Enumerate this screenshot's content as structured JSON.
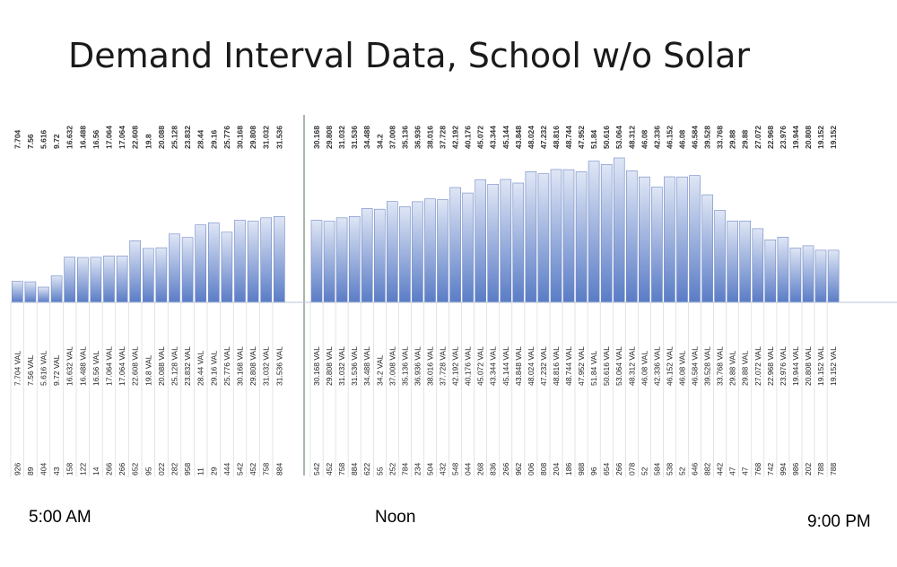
{
  "slide": {
    "title": "Demand Interval Data, School w/o Solar"
  },
  "time_labels": {
    "start": "5:00 AM",
    "noon": "Noon",
    "end": "9:00 PM"
  },
  "colors": {
    "bar_top": "#dfe6f5",
    "bar_bottom": "#5a7cc6",
    "bar_stroke": "#6d87c4",
    "divider": "#8aa08a"
  },
  "chart_data": {
    "type": "bar",
    "title": "",
    "xlabel": "",
    "ylabel": "",
    "ylim": [
      0,
      60
    ],
    "grid": false,
    "legend": "none",
    "value_labels_top": [
      "7.704",
      "7.56",
      "5.616",
      "9.72",
      "16.632",
      "16.488",
      "16.56",
      "17.064",
      "17.064",
      "22.608",
      "19.8",
      "20.088",
      "25.128",
      "23.832",
      "28.44",
      "29.16",
      "25.776",
      "30.168",
      "29.808",
      "31.032",
      "31.536",
      "30.168",
      "29.808",
      "31.032",
      "31.536",
      "34.488",
      "34.2",
      "37.008",
      "35.136",
      "36.936",
      "38.016",
      "37.728",
      "42.192",
      "40.176",
      "45.072",
      "43.344",
      "45.144",
      "43.848",
      "48.024",
      "47.232",
      "48.816",
      "48.744",
      "47.952",
      "51.84",
      "50.616",
      "53.064",
      "48.312",
      "46.08",
      "42.336",
      "46.152",
      "46.08",
      "46.584",
      "39.528",
      "33.768",
      "29.88",
      "29.88",
      "27.072",
      "22.968",
      "23.976",
      "19.944",
      "20.808",
      "19.152",
      "19.152"
    ],
    "values": [
      7.704,
      7.56,
      5.616,
      9.72,
      16.632,
      16.488,
      16.56,
      17.064,
      17.064,
      22.608,
      19.8,
      20.088,
      25.128,
      23.832,
      28.44,
      29.16,
      25.776,
      30.168,
      29.808,
      31.032,
      31.536,
      30.168,
      29.808,
      31.032,
      31.536,
      34.488,
      34.2,
      37.008,
      35.136,
      36.936,
      38.016,
      37.728,
      42.192,
      40.176,
      45.072,
      43.344,
      45.144,
      43.848,
      48.024,
      47.232,
      48.816,
      48.744,
      47.952,
      51.84,
      50.616,
      53.064,
      48.312,
      46.08,
      42.336,
      46.152,
      46.08,
      46.584,
      39.528,
      33.768,
      29.88,
      29.88,
      27.072,
      22.968,
      23.976,
      19.944,
      20.808,
      19.152,
      19.152
    ],
    "categories": [
      "7.704 VAL",
      "7.56 VAL",
      "5.616 VAL",
      "9.72 VAL",
      "16.632 VAL",
      "16.488 VAL",
      "16.56 VAL",
      "17.064 VAL",
      "17.064 VAL",
      "22.608 VAL",
      "19.8 VAL",
      "20.088 VAL",
      "25.128 VAL",
      "23.832 VAL",
      "28.44 VAL",
      "29.16 VAL",
      "25.776 VAL",
      "30.168 VAL",
      "29.808 VAL",
      "31.032 VAL",
      "31.536 VAL",
      "30.168 VAL",
      "29.808 VAL",
      "31.032 VAL",
      "31.536 VAL",
      "34.488 VAL",
      "34.2 VAL",
      "37.008 VAL",
      "35.136 VAL",
      "36.936 VAL",
      "38.016 VAL",
      "37.728 VAL",
      "42.192 VAL",
      "40.176 VAL",
      "45.072 VAL",
      "43.344 VAL",
      "45.144 VAL",
      "43.848 VAL",
      "48.024 VAL",
      "47.232 VAL",
      "48.816 VAL",
      "48.744 VAL",
      "47.952 VAL",
      "51.84 VAL",
      "50.616 VAL",
      "53.064 VAL",
      "48.312 VAL",
      "46.08 VAL",
      "42.336 VAL",
      "46.152 VAL",
      "46.08 VAL",
      "46.584 VAL",
      "39.528 VAL",
      "33.768 VAL",
      "29.88 VAL",
      "29.88 VAL",
      "27.072 VAL",
      "22.968 VAL",
      "23.976 VAL",
      "19.944 VAL",
      "20.808 VAL",
      "19.152 VAL",
      "19.152 VAL"
    ],
    "bottom_codes": [
      "926",
      "89",
      "404",
      "43",
      "158",
      "122",
      "14",
      "266",
      "266",
      "652",
      "95",
      "022",
      "282",
      "958",
      "11",
      "29",
      "444",
      "542",
      "452",
      "758",
      "884",
      "542",
      "452",
      "758",
      "884",
      "622",
      "55",
      "252",
      "784",
      "234",
      "504",
      "432",
      "548",
      "044",
      "268",
      "836",
      "266",
      "962",
      "006",
      "808",
      "204",
      "186",
      "988",
      "96",
      "654",
      "266",
      "078",
      "52",
      "584",
      "538",
      "52",
      "646",
      "882",
      "442",
      "47",
      "47",
      "768",
      "742",
      "994",
      "986",
      "202",
      "788",
      "788"
    ]
  }
}
